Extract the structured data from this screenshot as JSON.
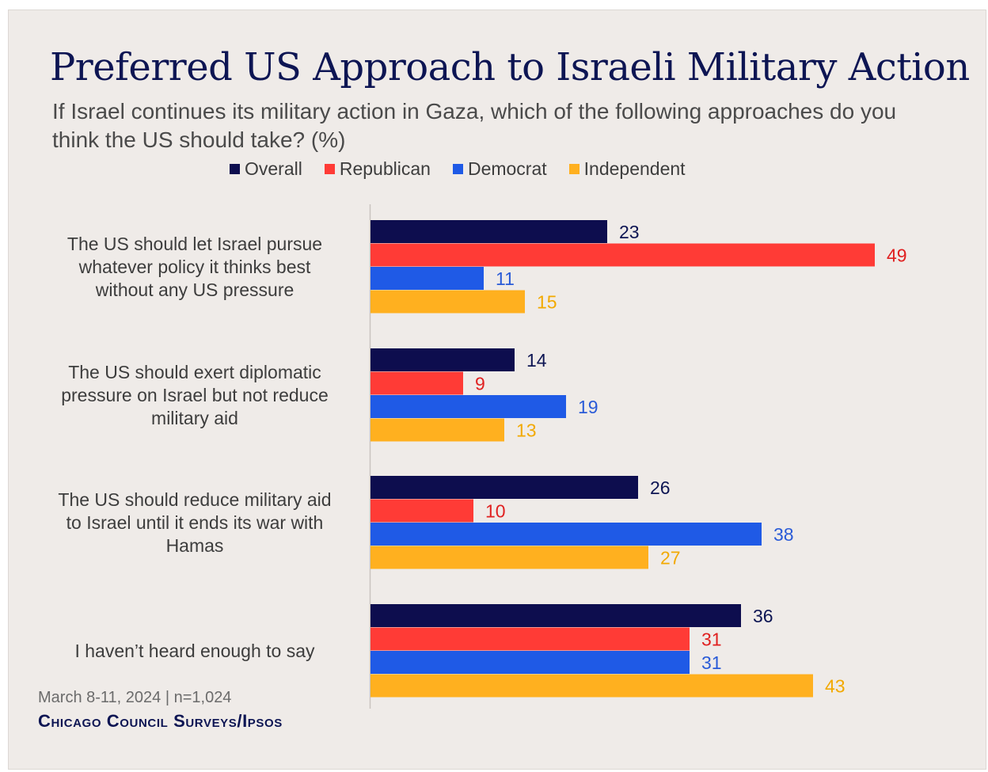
{
  "title": "Preferred US Approach to Israeli Military Action",
  "subtitle": "If Israel continues its military action in Gaza, which of the following approaches do you think the US should take? (%)",
  "footnote": "March 8-11, 2024 | n=1,024",
  "source": "Chicago Council Surveys/Ipsos",
  "colors": {
    "background": "#efebe8",
    "title": "#0d1553",
    "overall": "#0d0d4e",
    "republican": "#ff3b36",
    "democrat": "#1f5ae6",
    "independent": "#ffb01f",
    "label_overall": "#0d1553",
    "label_republican": "#e02020",
    "label_democrat": "#2a5bd7",
    "label_independent": "#f2a900"
  },
  "chart_data": {
    "type": "bar",
    "orientation": "horizontal",
    "categories": [
      "The US should let Israel pursue whatever policy it thinks best without any US pressure",
      "The US should exert diplomatic pressure on Israel but not reduce military aid",
      "The US should reduce military aid to Israel until it ends its war with Hamas",
      "I haven’t heard enough to say"
    ],
    "category_lines": [
      [
        "The US should let Israel pursue",
        "whatever policy it thinks best",
        "without any US pressure"
      ],
      [
        "The US should exert diplomatic",
        "pressure on Israel but not reduce",
        "military aid"
      ],
      [
        "The US should reduce military aid",
        "to Israel until it ends its war with",
        "Hamas"
      ],
      [
        "I haven’t heard enough to say"
      ]
    ],
    "series": [
      {
        "name": "Overall",
        "key": "overall",
        "values": [
          23,
          14,
          26,
          36
        ]
      },
      {
        "name": "Republican",
        "key": "republican",
        "values": [
          49,
          9,
          10,
          31
        ]
      },
      {
        "name": "Democrat",
        "key": "democrat",
        "values": [
          11,
          19,
          38,
          31
        ]
      },
      {
        "name": "Independent",
        "key": "independent",
        "values": [
          15,
          13,
          27,
          43
        ]
      }
    ],
    "xlim": [
      0,
      49
    ],
    "legend_position": "top",
    "grid": false,
    "data_labels": true
  }
}
